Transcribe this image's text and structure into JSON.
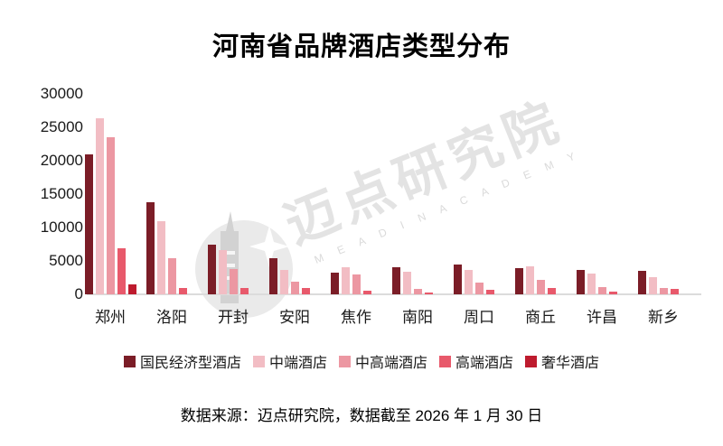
{
  "title": "河南省品牌酒店类型分布",
  "footer": "数据来源：迈点研究院，数据截至 2026 年 1 月 30 日",
  "watermark": {
    "cn": "迈点研究院",
    "en": "M E A D I N   A C A D E M Y"
  },
  "chart_data": {
    "type": "bar",
    "title": "河南省品牌酒店类型分布",
    "categories": [
      "郑州",
      "洛阳",
      "开封",
      "安阳",
      "焦作",
      "南阳",
      "周口",
      "商丘",
      "许昌",
      "新乡"
    ],
    "series": [
      {
        "name": "国民经济型酒店",
        "color": "#7b1d27",
        "values": [
          21000,
          13800,
          7400,
          5400,
          3300,
          4000,
          4500,
          3900,
          3600,
          3500
        ]
      },
      {
        "name": "中端酒店",
        "color": "#f2bdc4",
        "values": [
          26400,
          10900,
          6600,
          3600,
          4000,
          3400,
          3700,
          4200,
          3100,
          2500
        ]
      },
      {
        "name": "中高端酒店",
        "color": "#ec97a2",
        "values": [
          23500,
          5400,
          3800,
          1900,
          3000,
          800,
          1700,
          2200,
          1100,
          1000
        ]
      },
      {
        "name": "高端酒店",
        "color": "#e8596b",
        "values": [
          6900,
          1000,
          1000,
          900,
          500,
          300,
          700,
          900,
          400,
          800
        ]
      },
      {
        "name": "奢华酒店",
        "color": "#be1b2e",
        "values": [
          1500,
          0,
          0,
          0,
          0,
          0,
          0,
          0,
          0,
          0
        ]
      }
    ],
    "xlabel": "",
    "ylabel": "",
    "ylim": [
      0,
      30000
    ],
    "ytick_labels": [
      "30000",
      "25000",
      "20000",
      "15000",
      "10000",
      "5000",
      "0"
    ],
    "grid": false,
    "legend_position": "bottom",
    "colors": {
      "axis_line": "#dcdcdc",
      "text": "#1a1a1a",
      "watermark": "#e3e3e3"
    }
  }
}
